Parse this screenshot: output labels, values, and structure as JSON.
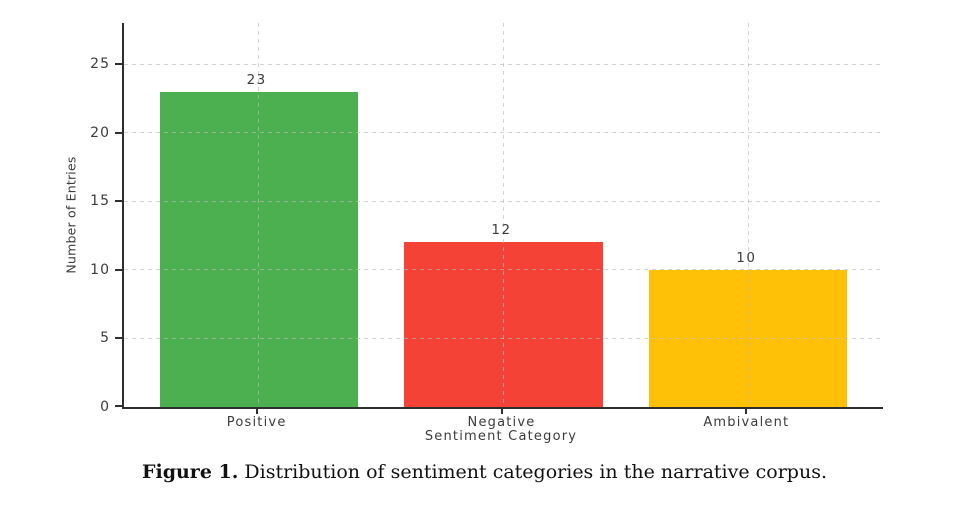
{
  "chart_data": {
    "type": "bar",
    "categories": [
      "Positive",
      "Negative",
      "Ambivalent"
    ],
    "values": [
      23,
      12,
      10
    ],
    "value_labels": [
      "23",
      "12",
      "10"
    ],
    "bar_colors": [
      "#4caf50",
      "#f44336",
      "#ffc107"
    ],
    "xlabel": "Sentiment Category",
    "ylabel": "Number of Entries",
    "ylim": [
      0,
      28
    ],
    "yticks": [
      0,
      5,
      10,
      15,
      20,
      25
    ],
    "grid": "dashed, horizontal at yticks and vertical at bar centers",
    "legend": "none",
    "title": ""
  },
  "caption": {
    "label": "Figure 1.",
    "text": " Distribution of sentiment categories in the narrative corpus."
  },
  "colors": {
    "spine": "#2e2e2e",
    "text": "#3c3c3c",
    "grid": "#bababa",
    "background": "#ffffff",
    "positive_bar": "#4caf50",
    "negative_bar": "#f44336",
    "ambivalent_bar": "#ffc107"
  }
}
